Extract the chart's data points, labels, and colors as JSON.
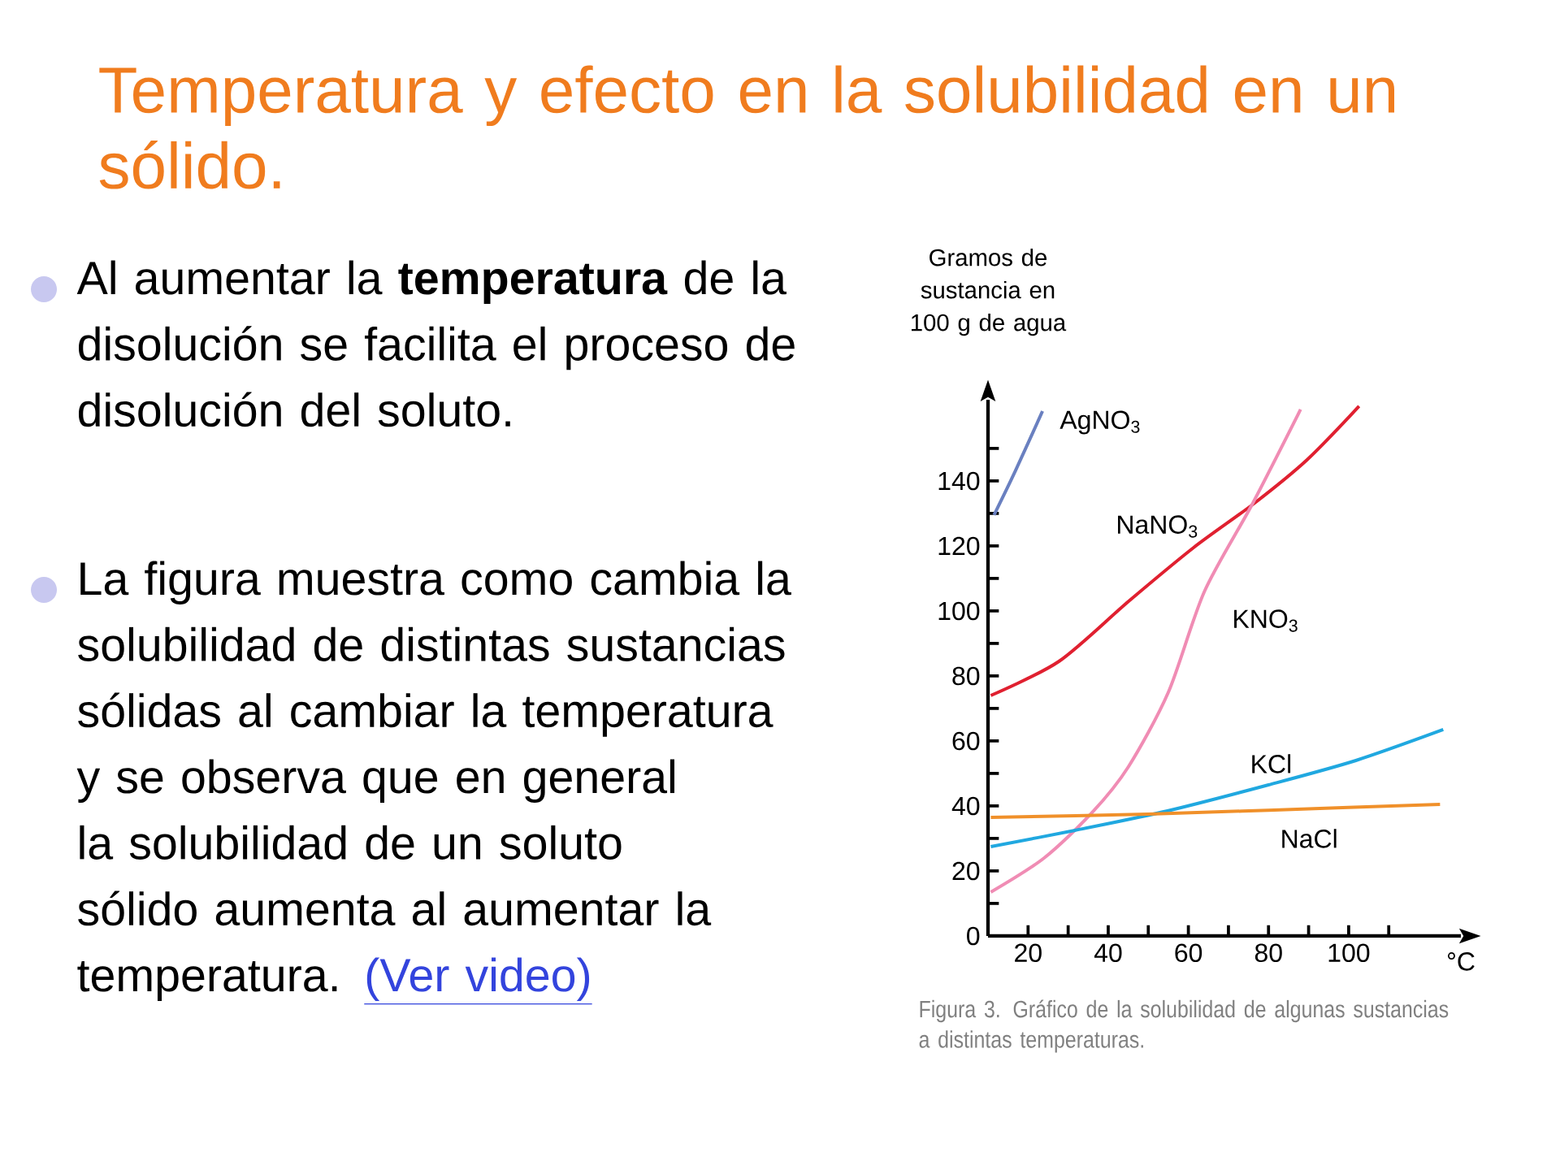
{
  "chart_data": {
    "type": "line",
    "title": "Temperatura y efecto en la solubilidad en un sólido.",
    "xlabel": "°C",
    "ylabel": "Gramos de sustancia en 100 g de agua",
    "annotations": [
      "Al aumentar la **temperatura** de la disolución se facilita el proceso de disolución del soluto.",
      "La figura  muestra como cambia la solubilidad de distintas sustancias sólidas al cambiar la temperatura y se observa que en general la solubilidad de un soluto sólido aumenta al aumentar la temperatura.",
      "(Ver video)",
      "Figura 3. Gráfico de la solubilidad de algunas sustancias a distintas temperaturas."
    ],
    "xlim": [
      10,
      128
    ],
    "ylim": [
      0,
      165
    ],
    "xticks": [
      20,
      {
        "value": 30,
        "label": null
      },
      40,
      {
        "value": 50,
        "label": null
      },
      60,
      {
        "value": 70,
        "label": null
      },
      80,
      {
        "value": 90,
        "label": null
      },
      100,
      {
        "value": 110,
        "label": null
      }
    ],
    "yticks": [
      0,
      {
        "value": 10,
        "label": null
      },
      20,
      {
        "value": 30,
        "label": null
      },
      40,
      {
        "value": 50,
        "label": null
      },
      60,
      {
        "value": 70,
        "label": null
      },
      80,
      {
        "value": 90,
        "label": null
      },
      100,
      {
        "value": 110,
        "label": null
      },
      120,
      {
        "value": 130,
        "label": null
      },
      140,
      {
        "value": 150,
        "label": null
      }
    ],
    "marker": "none",
    "line_style": "solid",
    "series": [
      {
        "name": "AgNO$_{3}$",
        "color": "#6a80c0",
        "x": [
          11.5,
          16.8,
          23.6
        ],
        "values": [
          129.5,
          143,
          161.5
        ]
      },
      {
        "name": "NaNO$_{3}$",
        "color": "#e02030",
        "x": [
          10.7,
          27.7,
          45.1,
          61.3,
          76.3,
          89.6,
          102.6
        ],
        "values": [
          74,
          84.5,
          103,
          119.5,
          133,
          146.5,
          163
        ]
      },
      {
        "name": "KNO$_{3}$",
        "color": "#f08cb4",
        "x": [
          10.7,
          24,
          36,
          45,
          55,
          64,
          76,
          88
        ],
        "values": [
          13.5,
          24,
          38,
          52,
          75,
          106,
          133,
          162
        ]
      },
      {
        "name": "KCl",
        "color": "#20a8e0",
        "x": [
          10.7,
          31.7,
          54.8,
          80,
          101.8,
          123.6
        ],
        "values": [
          27.5,
          32.5,
          38.5,
          46.5,
          54,
          63.5
        ]
      },
      {
        "name": "NaCl",
        "color": "#f0902a",
        "x": [
          10.7,
          50,
          80,
          122.8
        ],
        "values": [
          36.5,
          37.5,
          38.7,
          40.5
        ]
      }
    ]
  }
}
